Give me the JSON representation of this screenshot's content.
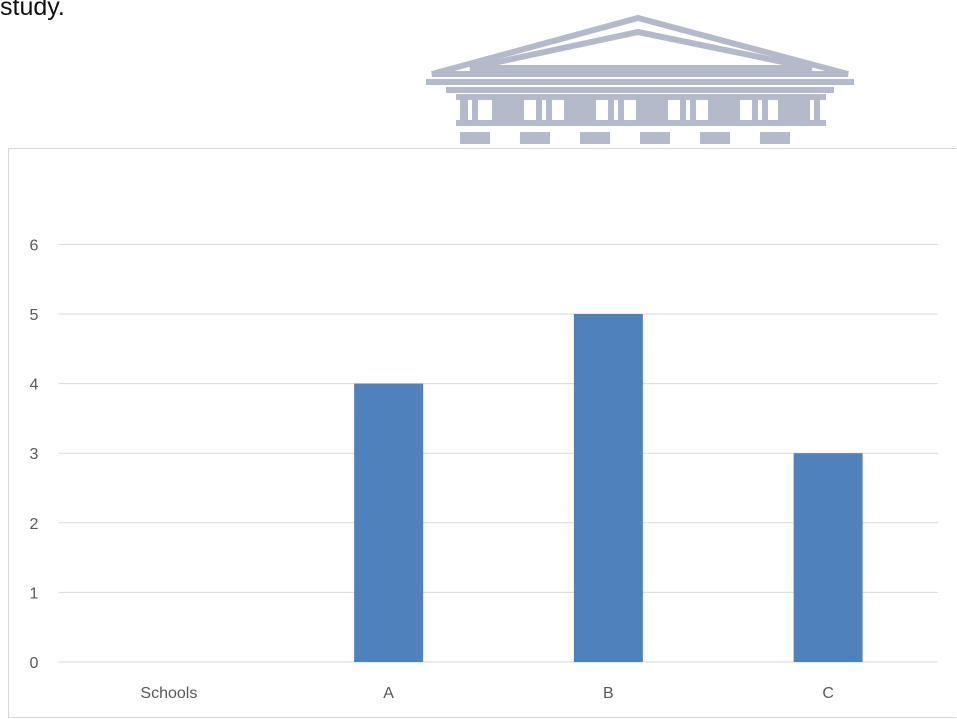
{
  "page": {
    "top_text": "study."
  },
  "colors": {
    "bar": "#4f81bd",
    "grid": "#d9d9d9",
    "tick_text": "#595959",
    "watermark": "#b4bac9"
  },
  "chart_data": {
    "type": "bar",
    "categories": [
      "Schools",
      "A",
      "B",
      "C"
    ],
    "values": [
      null,
      4,
      5,
      3
    ],
    "yticks": [
      0,
      1,
      2,
      3,
      4,
      5,
      6
    ],
    "ylim": [
      0,
      6
    ],
    "title": "",
    "xlabel": "",
    "ylabel": "",
    "grid": true,
    "legend": "none"
  }
}
